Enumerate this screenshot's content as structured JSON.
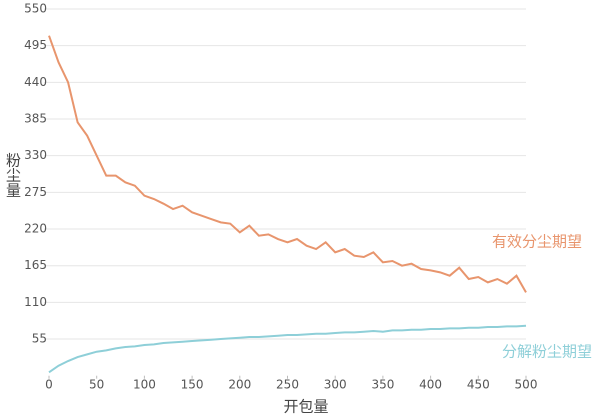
{
  "chart_data": {
    "type": "line",
    "xlabel": "开包量",
    "ylabel": "粉尘量",
    "x": [
      0,
      10,
      20,
      30,
      40,
      50,
      60,
      70,
      80,
      90,
      100,
      110,
      120,
      130,
      140,
      150,
      160,
      170,
      180,
      190,
      200,
      210,
      220,
      230,
      240,
      250,
      260,
      270,
      280,
      290,
      300,
      310,
      320,
      330,
      340,
      350,
      360,
      370,
      380,
      390,
      400,
      410,
      420,
      430,
      440,
      450,
      460,
      470,
      480,
      490,
      500
    ],
    "series": [
      {
        "name": "有效分尘期望",
        "color": "#e8956d",
        "values": [
          510,
          470,
          440,
          380,
          360,
          330,
          300,
          300,
          290,
          285,
          270,
          265,
          258,
          250,
          255,
          245,
          240,
          235,
          230,
          228,
          215,
          225,
          210,
          212,
          205,
          200,
          205,
          195,
          190,
          200,
          185,
          190,
          180,
          178,
          185,
          170,
          172,
          165,
          168,
          160,
          158,
          155,
          150,
          162,
          145,
          148,
          140,
          145,
          138,
          150,
          125
        ]
      },
      {
        "name": "分解粉尘期望",
        "color": "#8ecfd8",
        "values": [
          5,
          15,
          22,
          28,
          32,
          36,
          38,
          41,
          43,
          44,
          46,
          47,
          49,
          50,
          51,
          52,
          53,
          54,
          55,
          56,
          57,
          58,
          58,
          59,
          60,
          61,
          61,
          62,
          63,
          63,
          64,
          65,
          65,
          66,
          67,
          66,
          68,
          68,
          69,
          69,
          70,
          70,
          71,
          71,
          72,
          72,
          73,
          73,
          74,
          74,
          75
        ]
      }
    ],
    "xlim": [
      0,
      500
    ],
    "xticks": [
      0,
      50,
      100,
      150,
      200,
      250,
      300,
      350,
      400,
      450,
      500
    ],
    "ylim": [
      0,
      550
    ],
    "yticks": [
      55,
      110,
      165,
      220,
      275,
      330,
      385,
      440,
      495,
      550
    ],
    "grid": true
  }
}
